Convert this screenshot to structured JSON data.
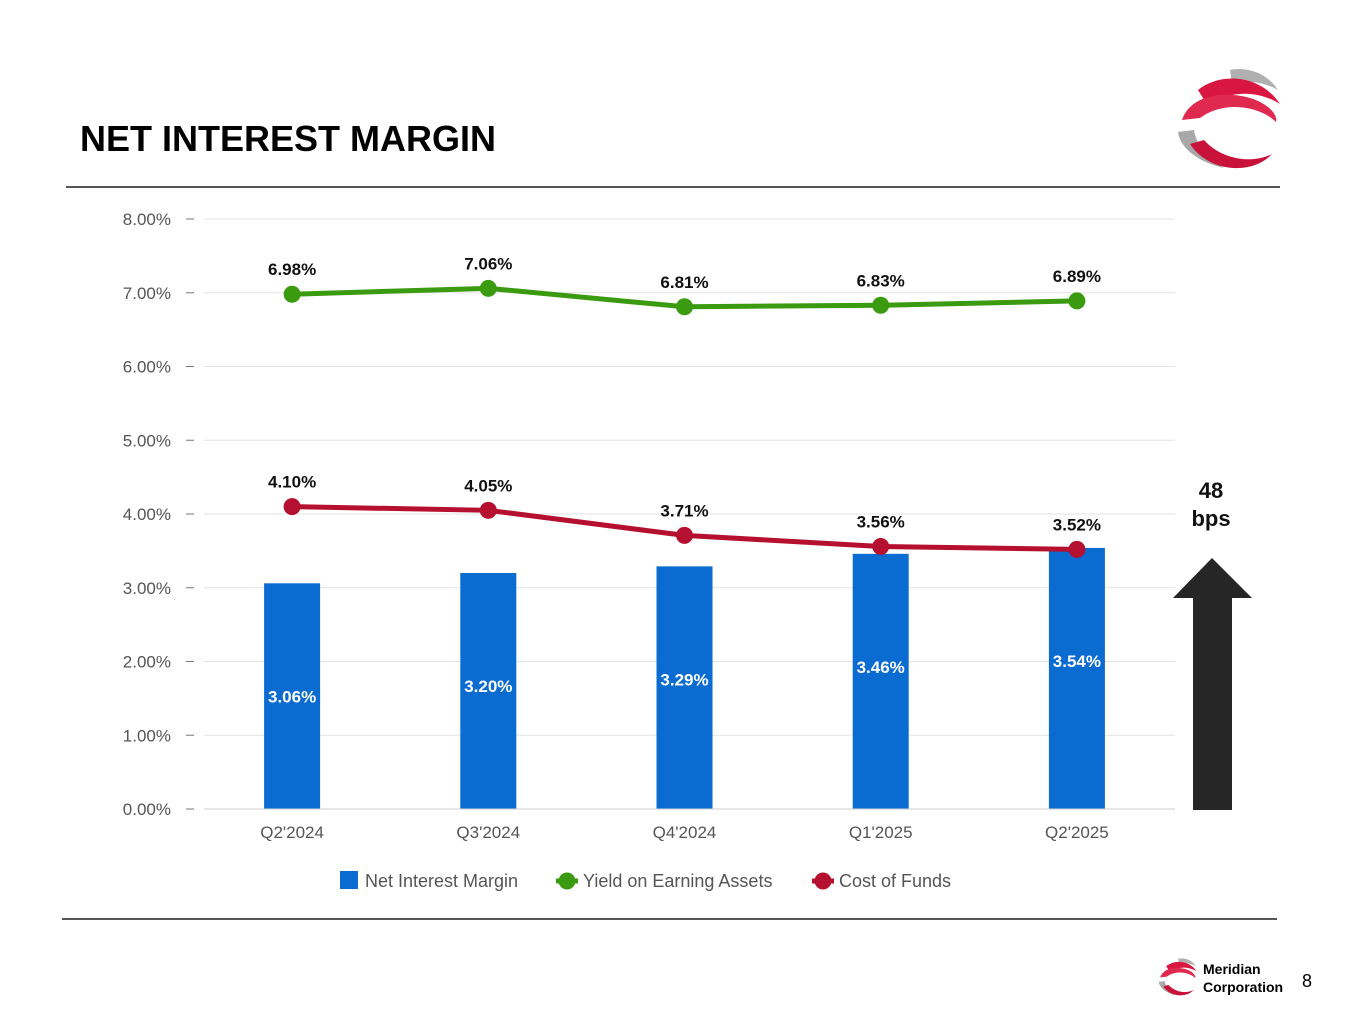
{
  "slide": {
    "title": "NET INTEREST MARGIN",
    "page_number": "8"
  },
  "footer": {
    "company_line1": "Meridian",
    "company_line2": "Corporation"
  },
  "colors": {
    "nim": "#0a6bd1",
    "yield": "#3a9a10",
    "cost": "#b5102f",
    "arrow": "#262626",
    "logo_red": "#d9163f",
    "logo_gray": "#9a9a9a"
  },
  "chart_data": {
    "type": "bar",
    "categories": [
      "Q2'2024",
      "Q3'2024",
      "Q4'2024",
      "Q1'2025",
      "Q2'2025"
    ],
    "ylim": [
      0,
      8
    ],
    "yticks": [
      "0.00%",
      "1.00%",
      "2.00%",
      "3.00%",
      "4.00%",
      "5.00%",
      "6.00%",
      "7.00%",
      "8.00%"
    ],
    "grid": true,
    "legend_position": "bottom",
    "series": [
      {
        "name": "Net Interest Margin",
        "kind": "bar",
        "values": [
          3.06,
          3.2,
          3.29,
          3.46,
          3.54
        ],
        "labels": [
          "3.06%",
          "3.20%",
          "3.29%",
          "3.46%",
          "3.54%"
        ]
      },
      {
        "name": "Yield on Earning Assets",
        "kind": "line",
        "values": [
          6.98,
          7.06,
          6.81,
          6.83,
          6.89
        ],
        "labels": [
          "6.98%",
          "7.06%",
          "6.81%",
          "6.83%",
          "6.89%"
        ]
      },
      {
        "name": "Cost of Funds",
        "kind": "line",
        "values": [
          4.1,
          4.05,
          3.71,
          3.56,
          3.52
        ],
        "labels": [
          "4.10%",
          "4.05%",
          "3.71%",
          "3.56%",
          "3.52%"
        ]
      }
    ],
    "annotation": {
      "line1": "48",
      "line2": "bps",
      "direction": "up"
    }
  }
}
